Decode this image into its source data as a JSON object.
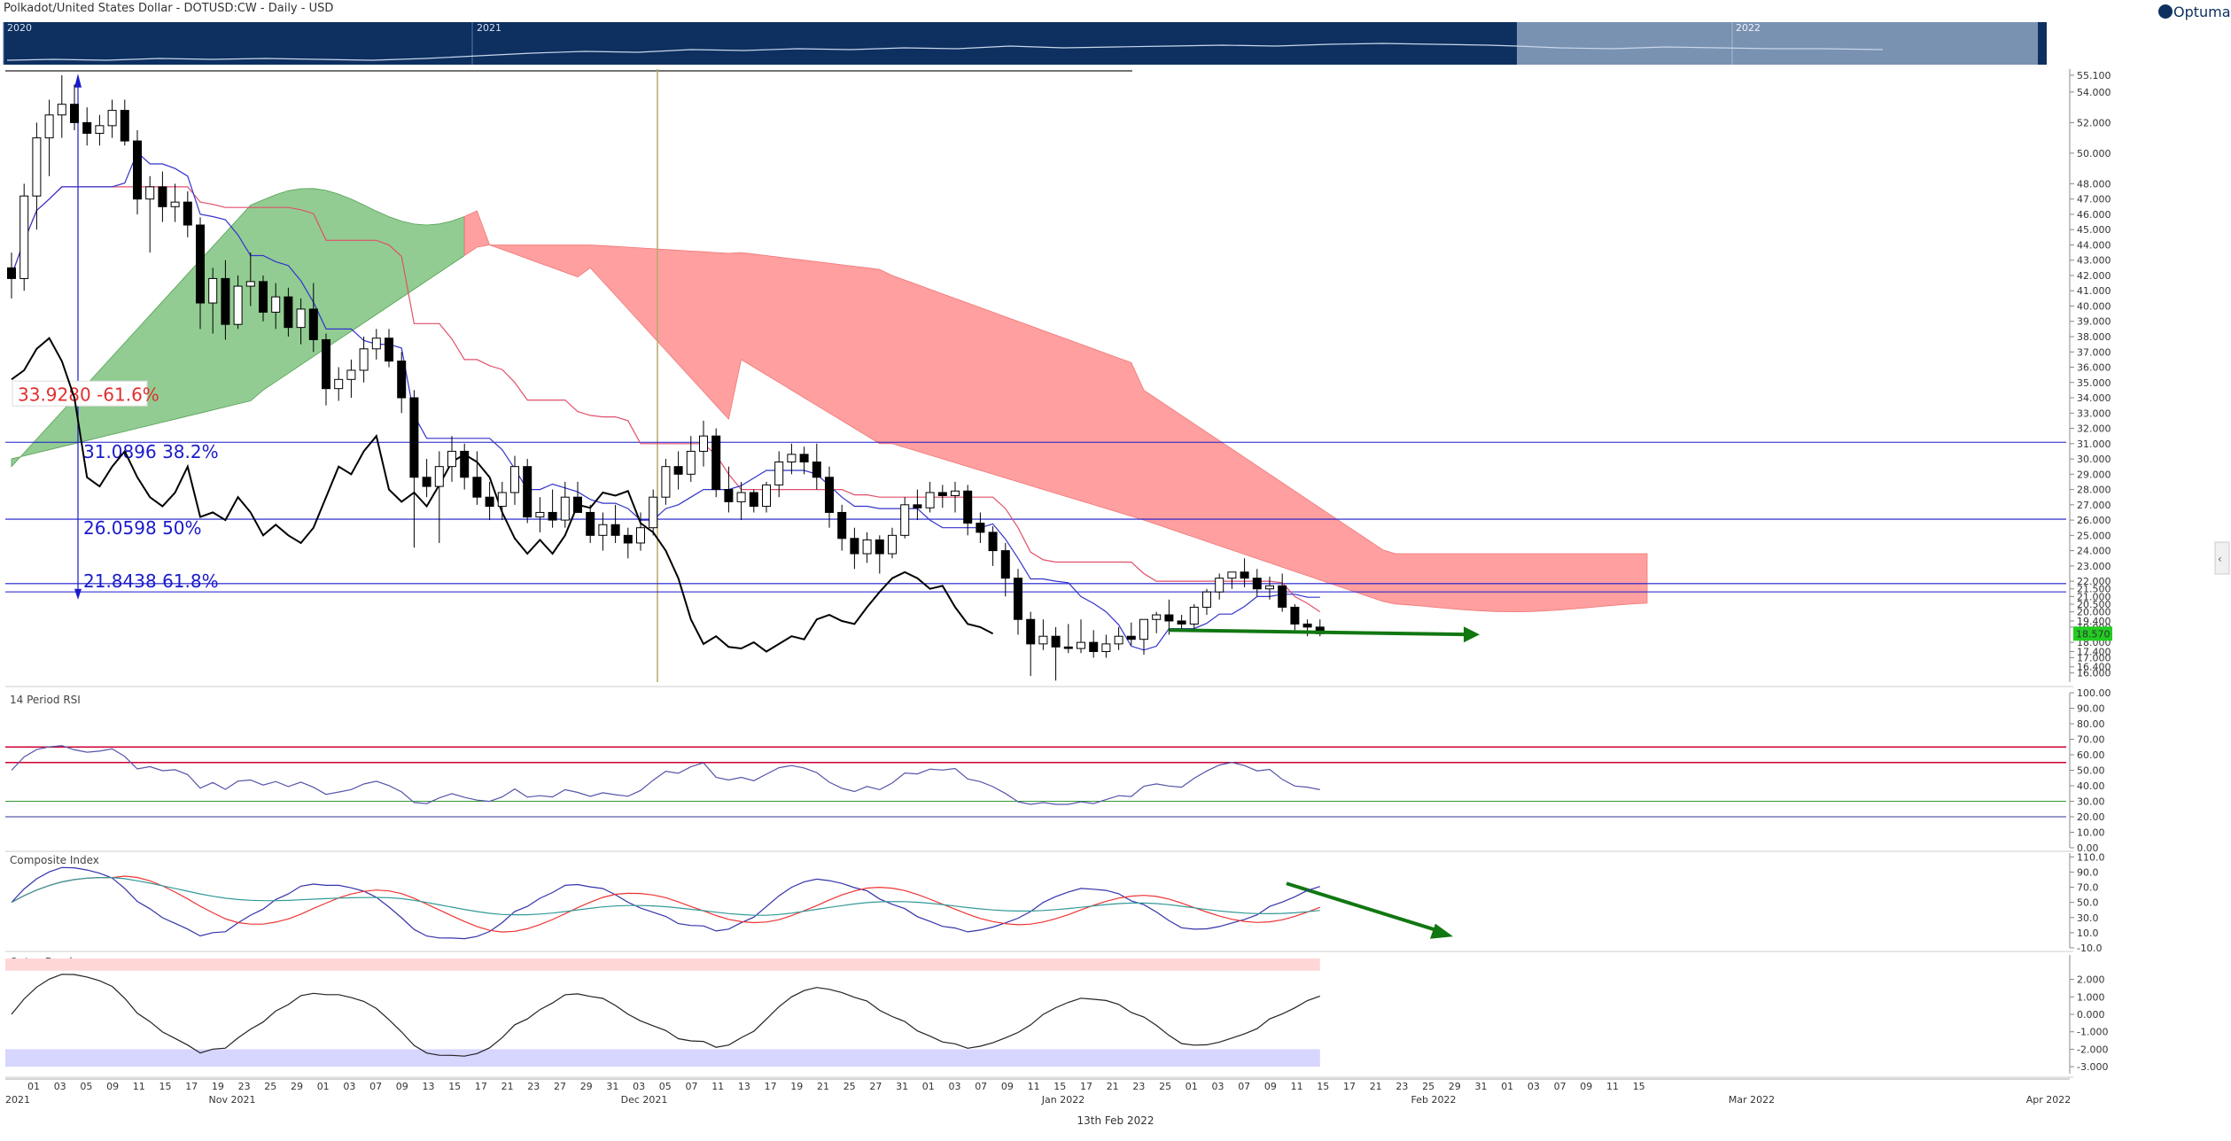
{
  "header": {
    "title": "Polkadot/United States Dollar - DOTUSD:CW - Daily - USD",
    "logo_text": "Optuma"
  },
  "overview": {
    "year_labels": [
      "2020",
      "2021",
      "2022"
    ]
  },
  "footer": {
    "date": "13th Feb 2022"
  },
  "colors": {
    "navy": "#0d3060",
    "cloud_green": "#8cc98c",
    "cloud_red": "#ff9a9a",
    "tenkan": "#3333cc",
    "kijun": "#e0506a",
    "chikou": "#000000",
    "fib_blue": "#1a1acc",
    "fib_red": "#e03030",
    "rsi_red": "#cc0033",
    "price_box": "#22cc22",
    "arrow": "#117711"
  },
  "chart_data": [
    {
      "type": "candlestick",
      "panel": "price",
      "ylim": [
        15.4,
        55.5
      ],
      "yticks": [
        "55.100",
        "54.000",
        "52.000",
        "50.000",
        "48.000",
        "47.000",
        "46.000",
        "45.000",
        "44.000",
        "43.000",
        "42.000",
        "41.000",
        "40.000",
        "39.000",
        "38.000",
        "37.000",
        "36.000",
        "35.000",
        "34.000",
        "33.000",
        "32.000",
        "31.000",
        "30.000",
        "29.000",
        "28.000",
        "27.000",
        "26.000",
        "25.000",
        "24.000",
        "23.000",
        "22.000",
        "21.500",
        "21.000",
        "20.500",
        "20.000",
        "19.400",
        "19.000",
        "18.000",
        "17.400",
        "17.000",
        "16.400",
        "16.000"
      ],
      "current_price": "18.570",
      "fib_levels": [
        {
          "price": 33.928,
          "label_price": "33.9280",
          "pct": "-61.6%",
          "color": "#e03030",
          "line": false
        },
        {
          "price": 31.0896,
          "label_price": "31.0896",
          "pct": "38.2%",
          "color": "#1a1acc",
          "line": true
        },
        {
          "price": 26.0598,
          "label_price": "26.0598",
          "pct": "50%",
          "color": "#1a1acc",
          "line": true
        },
        {
          "price": 21.8438,
          "label_price": "21.8438",
          "pct": "61.8%",
          "color": "#1a1acc",
          "line": true
        }
      ],
      "candles": [
        [
          42.5,
          43.5,
          40.5,
          41.8
        ],
        [
          41.8,
          48.0,
          41.0,
          47.2
        ],
        [
          47.2,
          52.0,
          45.0,
          51.0
        ],
        [
          51.0,
          53.5,
          48.5,
          52.5
        ],
        [
          52.5,
          55.1,
          51.0,
          53.2
        ],
        [
          53.2,
          54.5,
          51.5,
          52.0
        ],
        [
          52.0,
          53.0,
          50.5,
          51.3
        ],
        [
          51.3,
          52.5,
          50.5,
          51.8
        ],
        [
          51.8,
          53.5,
          51.0,
          52.8
        ],
        [
          52.8,
          53.5,
          50.5,
          50.8
        ],
        [
          50.8,
          51.5,
          46.0,
          47.0
        ],
        [
          47.0,
          48.5,
          43.5,
          47.8
        ],
        [
          47.8,
          48.8,
          45.5,
          46.5
        ],
        [
          46.5,
          48.0,
          45.5,
          46.8
        ],
        [
          46.8,
          47.5,
          44.5,
          45.3
        ],
        [
          45.3,
          45.8,
          38.5,
          40.2
        ],
        [
          40.2,
          42.5,
          38.2,
          41.8
        ],
        [
          41.8,
          43.0,
          37.8,
          38.8
        ],
        [
          38.8,
          42.0,
          38.5,
          41.3
        ],
        [
          41.3,
          43.5,
          40.0,
          41.6
        ],
        [
          41.6,
          42.0,
          39.0,
          39.6
        ],
        [
          39.6,
          41.5,
          38.5,
          40.6
        ],
        [
          40.6,
          41.2,
          38.0,
          38.6
        ],
        [
          38.6,
          40.5,
          37.5,
          39.8
        ],
        [
          39.8,
          41.5,
          37.0,
          37.8
        ],
        [
          37.8,
          38.2,
          33.5,
          34.6
        ],
        [
          34.6,
          36.0,
          33.8,
          35.2
        ],
        [
          35.2,
          36.5,
          34.0,
          35.8
        ],
        [
          35.8,
          38.0,
          35.0,
          37.2
        ],
        [
          37.2,
          38.5,
          36.5,
          37.9
        ],
        [
          37.9,
          38.5,
          36.0,
          36.4
        ],
        [
          36.4,
          37.0,
          33.0,
          34.0
        ],
        [
          34.0,
          34.5,
          24.2,
          28.8
        ],
        [
          28.8,
          30.0,
          27.5,
          28.2
        ],
        [
          28.2,
          30.5,
          24.5,
          29.5
        ],
        [
          29.5,
          31.5,
          28.5,
          30.5
        ],
        [
          30.5,
          31.0,
          28.0,
          28.8
        ],
        [
          28.8,
          30.5,
          27.0,
          27.5
        ],
        [
          27.5,
          28.5,
          26.0,
          26.9
        ],
        [
          26.9,
          28.5,
          26.0,
          27.8
        ],
        [
          27.8,
          30.2,
          27.0,
          29.5
        ],
        [
          29.5,
          30.0,
          25.8,
          26.2
        ],
        [
          26.2,
          27.5,
          25.2,
          26.5
        ],
        [
          26.5,
          28.0,
          25.5,
          26.0
        ],
        [
          26.0,
          28.5,
          25.5,
          27.5
        ],
        [
          27.5,
          28.5,
          26.5,
          26.5
        ],
        [
          26.5,
          27.0,
          24.5,
          25.0
        ],
        [
          25.0,
          26.5,
          24.0,
          25.7
        ],
        [
          25.7,
          27.0,
          24.5,
          25.0
        ],
        [
          25.0,
          25.5,
          23.5,
          24.5
        ],
        [
          24.5,
          26.5,
          24.0,
          25.5
        ],
        [
          25.5,
          28.0,
          25.0,
          27.5
        ],
        [
          27.5,
          30.0,
          27.0,
          29.5
        ],
        [
          29.5,
          30.5,
          28.0,
          29.0
        ],
        [
          29.0,
          31.5,
          28.5,
          30.5
        ],
        [
          30.5,
          32.5,
          29.5,
          31.5
        ],
        [
          31.5,
          32.0,
          27.5,
          28.0
        ],
        [
          28.0,
          29.5,
          26.5,
          27.2
        ],
        [
          27.2,
          28.5,
          26.0,
          27.8
        ],
        [
          27.8,
          28.0,
          26.5,
          26.9
        ],
        [
          26.9,
          28.5,
          26.5,
          28.3
        ],
        [
          28.3,
          30.5,
          27.5,
          29.8
        ],
        [
          29.8,
          31.0,
          29.0,
          30.3
        ],
        [
          30.3,
          30.8,
          29.0,
          29.8
        ],
        [
          29.8,
          31.0,
          28.0,
          28.8
        ],
        [
          28.8,
          29.5,
          25.5,
          26.5
        ],
        [
          26.5,
          27.0,
          24.0,
          24.8
        ],
        [
          24.8,
          25.5,
          22.8,
          23.8
        ],
        [
          23.8,
          25.2,
          23.2,
          24.7
        ],
        [
          24.7,
          25.0,
          22.5,
          23.8
        ],
        [
          23.8,
          25.5,
          23.5,
          25.0
        ],
        [
          25.0,
          27.5,
          24.8,
          27.0
        ],
        [
          27.0,
          28.0,
          26.0,
          26.8
        ],
        [
          26.8,
          28.5,
          26.5,
          27.8
        ],
        [
          27.8,
          28.3,
          26.8,
          27.6
        ],
        [
          27.6,
          28.5,
          26.5,
          27.9
        ],
        [
          27.9,
          28.3,
          25.0,
          25.8
        ],
        [
          25.8,
          26.5,
          24.5,
          25.2
        ],
        [
          25.2,
          25.6,
          23.0,
          24.0
        ],
        [
          24.0,
          24.5,
          21.0,
          22.2
        ],
        [
          22.2,
          22.8,
          18.5,
          19.5
        ],
        [
          19.5,
          20.0,
          15.8,
          17.9
        ],
        [
          17.9,
          19.5,
          17.5,
          18.4
        ],
        [
          18.4,
          19.0,
          15.5,
          17.7
        ],
        [
          17.7,
          19.2,
          17.3,
          17.6
        ],
        [
          17.6,
          19.5,
          17.3,
          18.0
        ],
        [
          18.0,
          18.8,
          17.0,
          17.4
        ],
        [
          17.4,
          18.5,
          17.0,
          17.9
        ],
        [
          17.9,
          19.0,
          17.5,
          18.4
        ],
        [
          18.4,
          19.3,
          17.8,
          18.2
        ],
        [
          18.2,
          19.5,
          17.2,
          19.5
        ],
        [
          19.5,
          20.0,
          18.6,
          19.8
        ],
        [
          19.8,
          20.8,
          18.5,
          19.4
        ],
        [
          19.4,
          19.8,
          18.8,
          19.2
        ],
        [
          19.2,
          20.5,
          18.8,
          20.3
        ],
        [
          20.3,
          21.5,
          19.8,
          21.3
        ],
        [
          21.3,
          22.5,
          20.8,
          22.2
        ],
        [
          22.2,
          22.5,
          21.5,
          22.6
        ],
        [
          22.6,
          23.5,
          21.6,
          22.2
        ],
        [
          22.2,
          22.8,
          21.0,
          21.5
        ],
        [
          21.5,
          22.3,
          20.8,
          21.7
        ],
        [
          21.7,
          22.5,
          20.0,
          20.3
        ],
        [
          20.3,
          20.5,
          18.8,
          19.2
        ],
        [
          19.2,
          19.5,
          18.4,
          19.0
        ],
        [
          19.0,
          19.5,
          18.4,
          18.57
        ]
      ]
    },
    {
      "type": "line",
      "panel": "rsi",
      "title": "14 Period RSI",
      "ylim": [
        0,
        100
      ],
      "yticks": [
        "100.00",
        "90.00",
        "80.00",
        "70.00",
        "60.00",
        "50.00",
        "40.00",
        "30.00",
        "20.00",
        "10.00",
        "0.00"
      ],
      "levels": [
        30,
        20,
        65,
        55
      ]
    },
    {
      "type": "line",
      "panel": "composite",
      "title": "Composite Index",
      "ylim": [
        -10,
        115
      ],
      "yticks": [
        "110.0",
        "90.0",
        "70.0",
        "50.0",
        "30.0",
        "10.0",
        "-10.0"
      ]
    },
    {
      "type": "line",
      "panel": "optex",
      "title": "Optex Bands",
      "ylim": [
        -3.4,
        3.4
      ],
      "yticks": [
        "2.000",
        "1.000",
        "0.000",
        "-1.000",
        "-2.000",
        "-3.000"
      ]
    },
    {
      "type": "axis",
      "panel": "dates",
      "day_ticks": [
        "01",
        "03",
        "05",
        "09",
        "11",
        "15",
        "17",
        "19",
        "23",
        "25",
        "29",
        "01",
        "03",
        "07",
        "09",
        "13",
        "15",
        "17",
        "21",
        "23",
        "27",
        "29",
        "31",
        "03",
        "05",
        "07",
        "11",
        "13",
        "17",
        "19",
        "21",
        "25",
        "27",
        "31",
        "01",
        "03",
        "07",
        "09",
        "11",
        "15",
        "17",
        "21",
        "23",
        "25",
        "01",
        "03",
        "07",
        "09",
        "11",
        "15",
        "17",
        "21",
        "23",
        "25",
        "29",
        "31",
        "01",
        "03",
        "07",
        "09",
        "11",
        "15"
      ],
      "month_labels": [
        "2021",
        "Nov 2021",
        "Dec 2021",
        "Jan 2022",
        "Feb 2022",
        "Mar 2022",
        "Apr 2022"
      ]
    }
  ]
}
